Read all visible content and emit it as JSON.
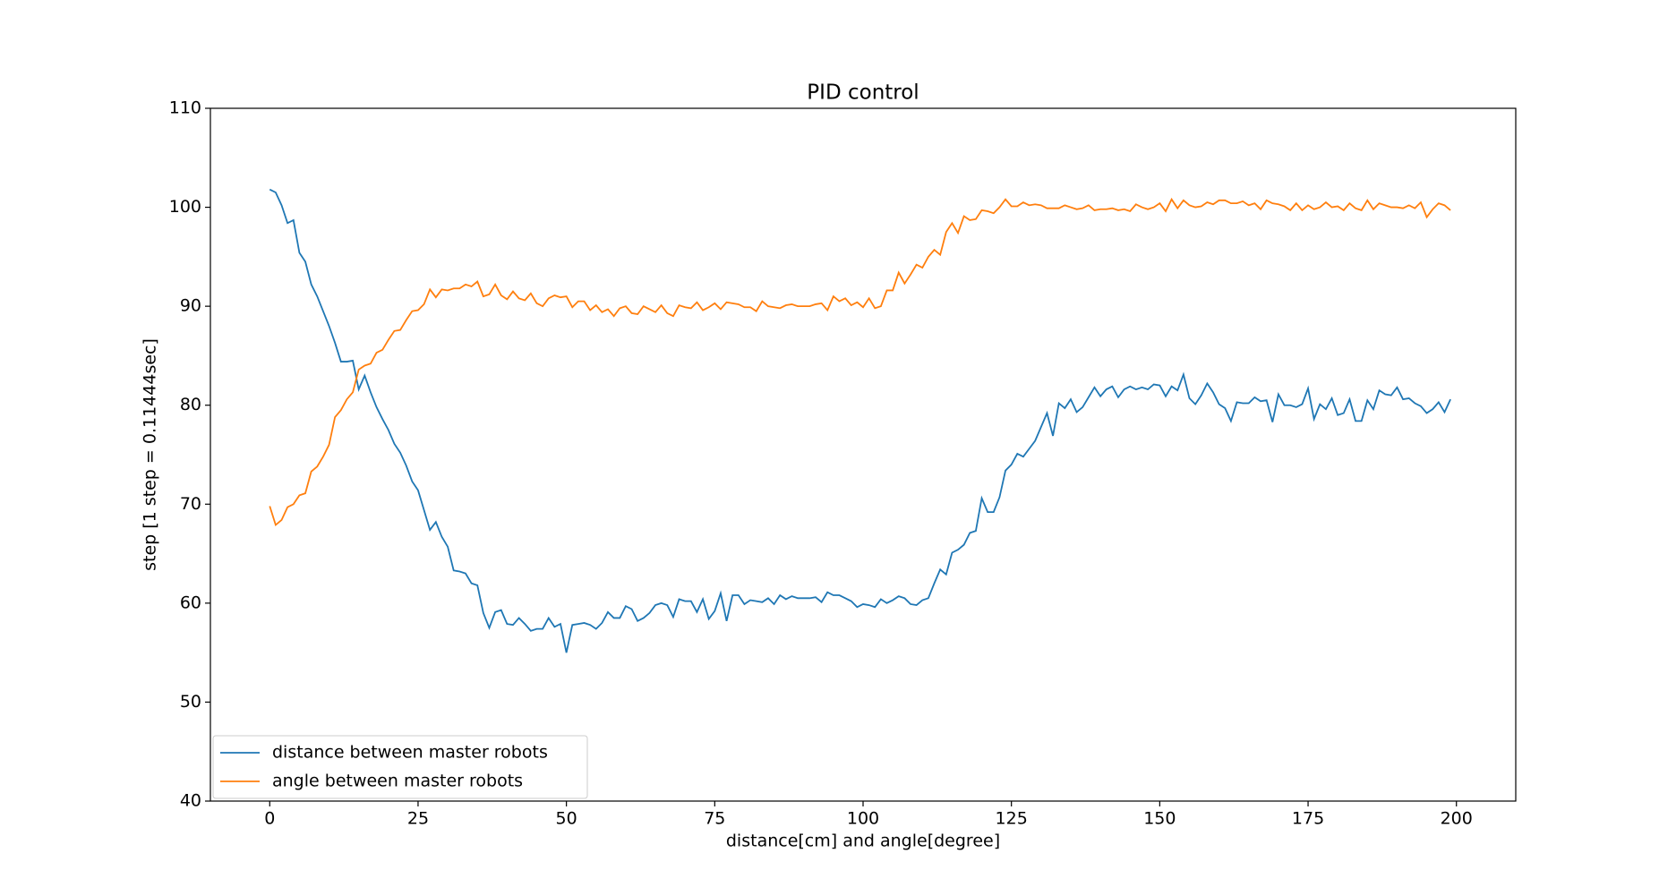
{
  "chart_data": {
    "type": "line",
    "title": "PID control",
    "xlabel": "distance[cm] and angle[degree]",
    "ylabel": "step [1 step = 0.11444sec]",
    "xlim": [
      -10,
      210
    ],
    "ylim": [
      40,
      110
    ],
    "xticks": [
      0,
      25,
      50,
      75,
      100,
      125,
      150,
      175,
      200
    ],
    "yticks": [
      40,
      50,
      60,
      70,
      80,
      90,
      100,
      110
    ],
    "legend": "lower left",
    "x": [
      0,
      1,
      2,
      3,
      4,
      5,
      6,
      7,
      8,
      9,
      10,
      11,
      12,
      13,
      14,
      15,
      16,
      17,
      18,
      19,
      20,
      21,
      22,
      23,
      24,
      25,
      26,
      27,
      28,
      29,
      30,
      31,
      32,
      33,
      34,
      35,
      36,
      37,
      38,
      39,
      40,
      41,
      42,
      43,
      44,
      45,
      46,
      47,
      48,
      49,
      50,
      51,
      52,
      53,
      54,
      55,
      56,
      57,
      58,
      59,
      60,
      61,
      62,
      63,
      64,
      65,
      66,
      67,
      68,
      69,
      70,
      71,
      72,
      73,
      74,
      75,
      76,
      77,
      78,
      79,
      80,
      81,
      82,
      83,
      84,
      85,
      86,
      87,
      88,
      89,
      90,
      91,
      92,
      93,
      94,
      95,
      96,
      97,
      98,
      99,
      100,
      101,
      102,
      103,
      104,
      105,
      106,
      107,
      108,
      109,
      110,
      111,
      112,
      113,
      114,
      115,
      116,
      117,
      118,
      119,
      120,
      121,
      122,
      123,
      124,
      125,
      126,
      127,
      128,
      129,
      130,
      131,
      132,
      133,
      134,
      135,
      136,
      137,
      138,
      139,
      140,
      141,
      142,
      143,
      144,
      145,
      146,
      147,
      148,
      149,
      150,
      151,
      152,
      153,
      154,
      155,
      156,
      157,
      158,
      159,
      160,
      161,
      162,
      163,
      164,
      165,
      166,
      167,
      168,
      169,
      170,
      171,
      172,
      173,
      174,
      175,
      176,
      177,
      178,
      179,
      180,
      181,
      182,
      183,
      184,
      185,
      186,
      187,
      188,
      189,
      190,
      191,
      192,
      193,
      194,
      195,
      196,
      197,
      198,
      199
    ],
    "series": [
      {
        "name": "distance between master robots",
        "color": "#1f77b4",
        "values": [
          101.8,
          101.5,
          100.2,
          98.4,
          98.7,
          95.4,
          94.5,
          92.2,
          91.0,
          89.5,
          88.0,
          86.3,
          84.4,
          84.4,
          84.5,
          81.6,
          83.0,
          81.3,
          79.8,
          78.6,
          77.5,
          76.1,
          75.2,
          73.9,
          72.3,
          71.4,
          69.4,
          67.4,
          68.2,
          66.7,
          65.7,
          63.3,
          63.2,
          63.0,
          62.0,
          61.8,
          59.0,
          57.5,
          59.1,
          59.3,
          57.9,
          57.8,
          58.5,
          57.9,
          57.2,
          57.4,
          57.4,
          58.5,
          57.6,
          57.9,
          55.0,
          57.8,
          57.9,
          58.0,
          57.8,
          57.4,
          58.0,
          59.1,
          58.5,
          58.5,
          59.7,
          59.4,
          58.2,
          58.5,
          59.0,
          59.8,
          60.0,
          59.8,
          58.6,
          60.4,
          60.2,
          60.2,
          59.1,
          60.4,
          58.4,
          59.2,
          61.0,
          58.2,
          60.8,
          60.8,
          59.9,
          60.3,
          60.2,
          60.1,
          60.5,
          59.9,
          60.8,
          60.4,
          60.7,
          60.5,
          60.5,
          60.5,
          60.6,
          60.1,
          61.1,
          60.8,
          60.8,
          60.5,
          60.2,
          59.6,
          59.9,
          59.8,
          59.6,
          60.4,
          60.0,
          60.3,
          60.7,
          60.5,
          59.9,
          59.8,
          60.3,
          60.5,
          62.0,
          63.4,
          62.9,
          65.1,
          65.4,
          65.9,
          67.1,
          67.3,
          70.6,
          69.2,
          69.2,
          70.7,
          73.4,
          74.0,
          75.1,
          74.8,
          75.6,
          76.4,
          77.8,
          79.2,
          76.9,
          80.2,
          79.7,
          80.6,
          79.3,
          79.8,
          80.8,
          81.8,
          80.9,
          81.6,
          81.9,
          80.8,
          81.6,
          81.9,
          81.6,
          81.8,
          81.6,
          82.1,
          82.0,
          80.9,
          81.9,
          81.5,
          83.1,
          80.7,
          80.1,
          81.0,
          82.2,
          81.3,
          80.1,
          79.7,
          78.4,
          80.3,
          80.2,
          80.2,
          80.8,
          80.4,
          80.5,
          78.3,
          81.1,
          80.0,
          80.0,
          79.8,
          80.1,
          81.7,
          78.6,
          80.1,
          79.6,
          80.7,
          79.0,
          79.2,
          80.6,
          78.4,
          78.4,
          80.5,
          79.6,
          81.5,
          81.1,
          81.0,
          81.8,
          80.6,
          80.7,
          80.2,
          79.9,
          79.2,
          79.6,
          80.3,
          79.3,
          80.6
        ]
      },
      {
        "name": "angle between master robots",
        "color": "#ff7f0e",
        "values": [
          69.8,
          67.9,
          68.4,
          69.7,
          70.0,
          70.9,
          71.1,
          73.3,
          73.8,
          74.8,
          76.0,
          78.8,
          79.5,
          80.6,
          81.3,
          83.6,
          84.0,
          84.2,
          85.3,
          85.6,
          86.6,
          87.5,
          87.6,
          88.6,
          89.5,
          89.6,
          90.2,
          91.7,
          90.9,
          91.7,
          91.6,
          91.8,
          91.8,
          92.2,
          92.0,
          92.5,
          91.0,
          91.2,
          92.2,
          91.1,
          90.7,
          91.5,
          90.8,
          90.6,
          91.3,
          90.3,
          90.0,
          90.8,
          91.1,
          90.9,
          91.0,
          89.9,
          90.5,
          90.5,
          89.6,
          90.1,
          89.4,
          89.7,
          89.0,
          89.8,
          90.0,
          89.3,
          89.2,
          90.0,
          89.7,
          89.4,
          90.1,
          89.3,
          89.0,
          90.1,
          89.9,
          89.8,
          90.4,
          89.6,
          89.9,
          90.3,
          89.7,
          90.4,
          90.3,
          90.2,
          89.9,
          89.9,
          89.5,
          90.5,
          90.0,
          89.9,
          89.8,
          90.1,
          90.2,
          90.0,
          90.0,
          90.0,
          90.2,
          90.3,
          89.6,
          91.0,
          90.5,
          90.8,
          90.1,
          90.4,
          89.9,
          90.8,
          89.8,
          90.0,
          91.6,
          91.6,
          93.4,
          92.3,
          93.2,
          94.2,
          93.9,
          95.0,
          95.7,
          95.2,
          97.5,
          98.4,
          97.4,
          99.1,
          98.7,
          98.8,
          99.7,
          99.6,
          99.4,
          100.0,
          100.8,
          100.1,
          100.1,
          100.5,
          100.2,
          100.3,
          100.2,
          99.9,
          99.9,
          99.9,
          100.2,
          100.0,
          99.8,
          99.9,
          100.2,
          99.7,
          99.8,
          99.8,
          99.9,
          99.7,
          99.8,
          99.6,
          100.3,
          100.0,
          99.8,
          100.0,
          100.4,
          99.6,
          100.8,
          99.9,
          100.7,
          100.2,
          100.0,
          100.1,
          100.5,
          100.3,
          100.7,
          100.7,
          100.4,
          100.4,
          100.6,
          100.2,
          100.4,
          99.8,
          100.7,
          100.4,
          100.3,
          100.1,
          99.7,
          100.4,
          99.7,
          100.2,
          99.8,
          100.0,
          100.5,
          100.0,
          100.1,
          99.7,
          100.4,
          99.9,
          99.7,
          100.7,
          99.8,
          100.4,
          100.2,
          100.0,
          100.0,
          99.9,
          100.2,
          99.9,
          100.5,
          99.0,
          99.8,
          100.4,
          100.2,
          99.7
        ]
      }
    ]
  }
}
